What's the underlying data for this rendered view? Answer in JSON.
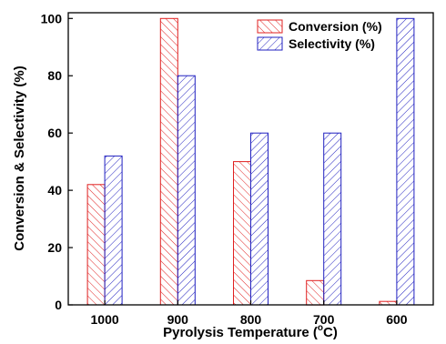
{
  "chart_data": {
    "type": "bar",
    "xlabel_parts": [
      "Pyrolysis Temperature (",
      "o",
      "C)"
    ],
    "ylabel": "Conversion & Selectivity (%)",
    "categories": [
      "1000",
      "900",
      "800",
      "700",
      "600"
    ],
    "series": [
      {
        "name": "Conversion (%)",
        "values": [
          42,
          100,
          50,
          8.5,
          1.2
        ],
        "color": "#e02020",
        "hatch": "backslash"
      },
      {
        "name": "Selectivity (%)",
        "values": [
          52,
          80,
          60,
          60,
          100
        ],
        "color": "#2020c0",
        "hatch": "slash"
      }
    ],
    "ylim": [
      0,
      102
    ],
    "yticks": [
      0,
      20,
      40,
      60,
      80,
      100
    ],
    "legend_position": "top-right",
    "grid": false
  }
}
